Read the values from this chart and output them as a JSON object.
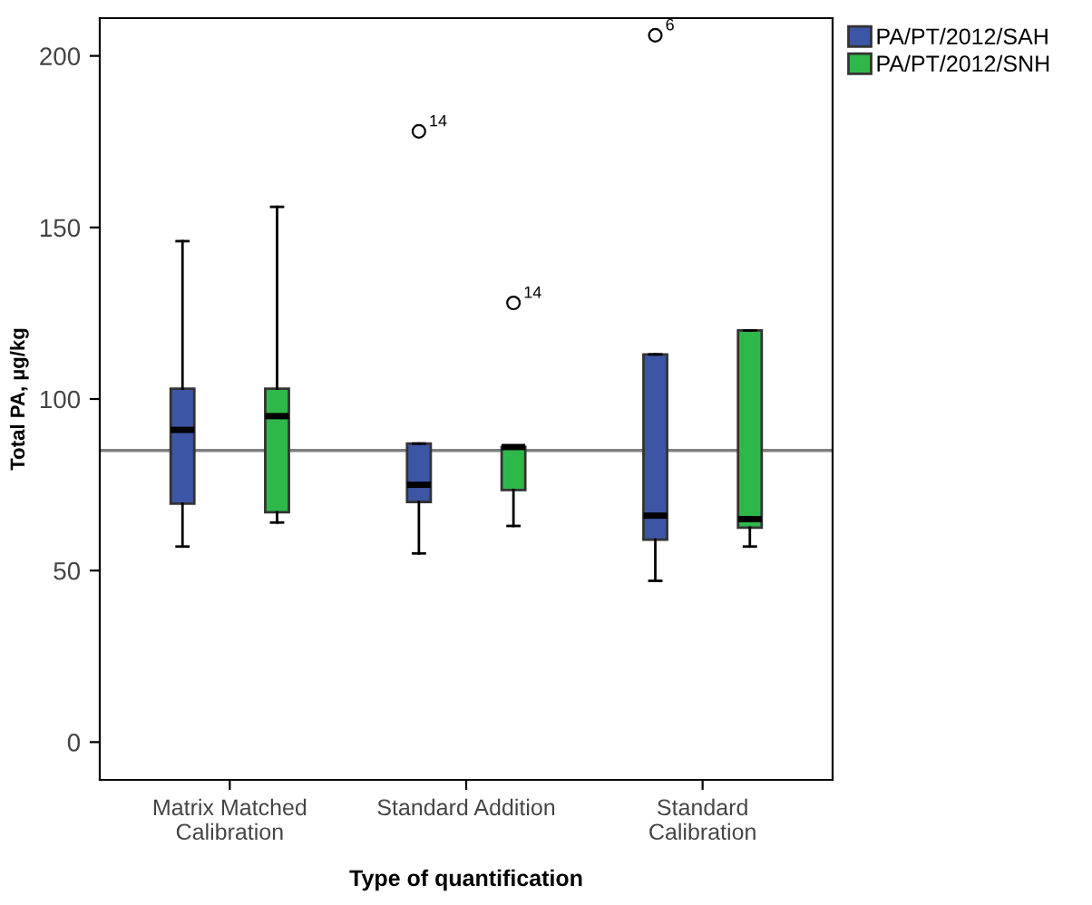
{
  "chart_data": {
    "type": "box",
    "xlabel": "Type of quantification",
    "ylabel": "Total PA, µg/kg",
    "categories": [
      "Matrix Matched\nCalibration",
      "Standard Addition",
      "Standard\nCalibration"
    ],
    "ylim": [
      -11,
      211
    ],
    "yticks": [
      0,
      50,
      100,
      150,
      200
    ],
    "grid": false,
    "legend": "top right",
    "marker": "circle",
    "series": [
      {
        "name": "PA/PT/2012/SAH",
        "color": "#3c55a5",
        "boxes": [
          {
            "low": 57,
            "q1": 69.5,
            "median": 91,
            "q3": 103,
            "high": 146
          },
          {
            "low": 55,
            "q1": 70,
            "median": 75,
            "q3": 87,
            "high": 87,
            "outliers": [
              178
            ]
          },
          {
            "low": 47,
            "q1": 59,
            "median": 66,
            "q3": 113,
            "high": 113,
            "outliers": [
              206
            ]
          }
        ]
      },
      {
        "name": "PA/PT/2012/SNH",
        "color": "#2fb84a",
        "boxes": [
          {
            "low": 64,
            "q1": 67,
            "median": 95,
            "q3": 103,
            "high": 156
          },
          {
            "low": 63,
            "q1": 73.5,
            "median": 86,
            "q3": 86,
            "high": 86,
            "outliers": [
              128
            ]
          },
          {
            "low": 57,
            "q1": 62.5,
            "median": 65,
            "q3": 120,
            "high": 120
          }
        ]
      }
    ],
    "ref_lines": [
      {
        "axis": "y",
        "value": 85,
        "color": "#808080"
      }
    ],
    "annotations": [
      "14",
      "6",
      "14"
    ]
  }
}
